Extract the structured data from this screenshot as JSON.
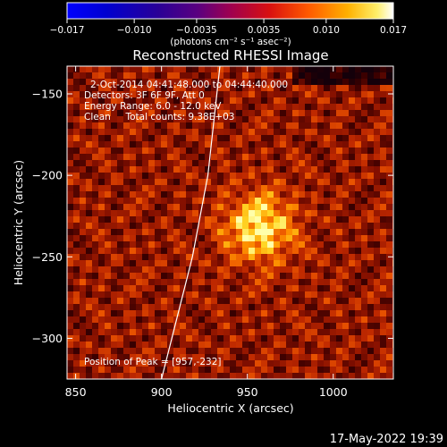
{
  "colorbar": {
    "tick_labels": [
      "−0.017",
      "−0.010",
      "−0.0035",
      "0.0035",
      "0.010",
      "0.017"
    ],
    "tick_values": [
      -0.017,
      -0.01,
      -0.0035,
      0.0035,
      0.01,
      0.017
    ],
    "range": [
      -0.017,
      0.017
    ],
    "unit_label": "(photons cm⁻² s⁻¹ asec⁻²)"
  },
  "chart_data": {
    "type": "heatmap",
    "title": "Reconstructed RHESSI Image",
    "xlabel": "Heliocentric X (arcsec)",
    "ylabel": "Heliocentric Y (arcsec)",
    "xlim": [
      845,
      1035
    ],
    "ylim": [
      -325,
      -133
    ],
    "x_ticks": [
      850,
      900,
      950,
      1000
    ],
    "x_tick_labels": [
      "850",
      "900",
      "950",
      "1000"
    ],
    "y_ticks": [
      -150,
      -200,
      -250,
      -300
    ],
    "y_tick_labels": [
      "−150",
      "−200",
      "−250",
      "−300"
    ],
    "peak": {
      "x": 957,
      "y": -232
    },
    "limb_curve": [
      {
        "x": 934,
        "y": -133
      },
      {
        "x": 927,
        "y": -200
      },
      {
        "x": 918,
        "y": -250
      },
      {
        "x": 906,
        "y": -300
      },
      {
        "x": 900,
        "y": -325
      }
    ],
    "annotations": [
      "2-Oct-2014 04:41:48.000 to 04:44:40.000",
      "Detectors: 3F 6F 9F, Att 0",
      "Energy Range: 6.0 - 12.0 keV",
      "Clean     Total counts: 9.38E+03",
      "Position of Peak = [957,-232]"
    ]
  },
  "footer": {
    "timestamp": "17-May-2022 19:39"
  }
}
